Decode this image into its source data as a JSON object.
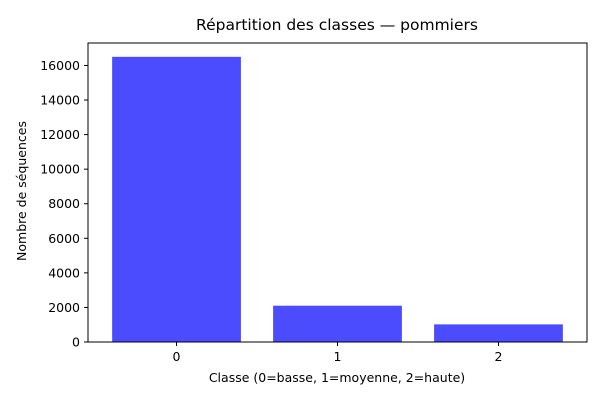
{
  "chart_data": {
    "type": "bar",
    "title": "Répartition des classes — pommiers",
    "xlabel": "Classe (0=basse, 1=moyenne, 2=haute)",
    "ylabel": "Nombre de séquences",
    "categories": [
      "0",
      "1",
      "2"
    ],
    "values": [
      16500,
      2100,
      1020
    ],
    "ylim": [
      0,
      17300
    ],
    "yticks": [
      0,
      2000,
      4000,
      6000,
      8000,
      10000,
      12000,
      14000,
      16000
    ],
    "grid": false,
    "bar_color": "#4c4cff"
  }
}
